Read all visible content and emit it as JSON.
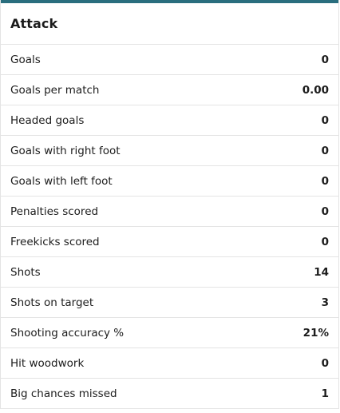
{
  "card": {
    "title": "Attack",
    "accent_color": "#2a6e7e"
  },
  "stats": [
    {
      "label": "Goals",
      "value": "0"
    },
    {
      "label": "Goals per match",
      "value": "0.00"
    },
    {
      "label": "Headed goals",
      "value": "0"
    },
    {
      "label": "Goals with right foot",
      "value": "0"
    },
    {
      "label": "Goals with left foot",
      "value": "0"
    },
    {
      "label": "Penalties scored",
      "value": "0"
    },
    {
      "label": "Freekicks scored",
      "value": "0"
    },
    {
      "label": "Shots",
      "value": "14"
    },
    {
      "label": "Shots on target",
      "value": "3"
    },
    {
      "label": "Shooting accuracy %",
      "value": "21%"
    },
    {
      "label": "Hit woodwork",
      "value": "0"
    },
    {
      "label": "Big chances missed",
      "value": "1"
    }
  ]
}
